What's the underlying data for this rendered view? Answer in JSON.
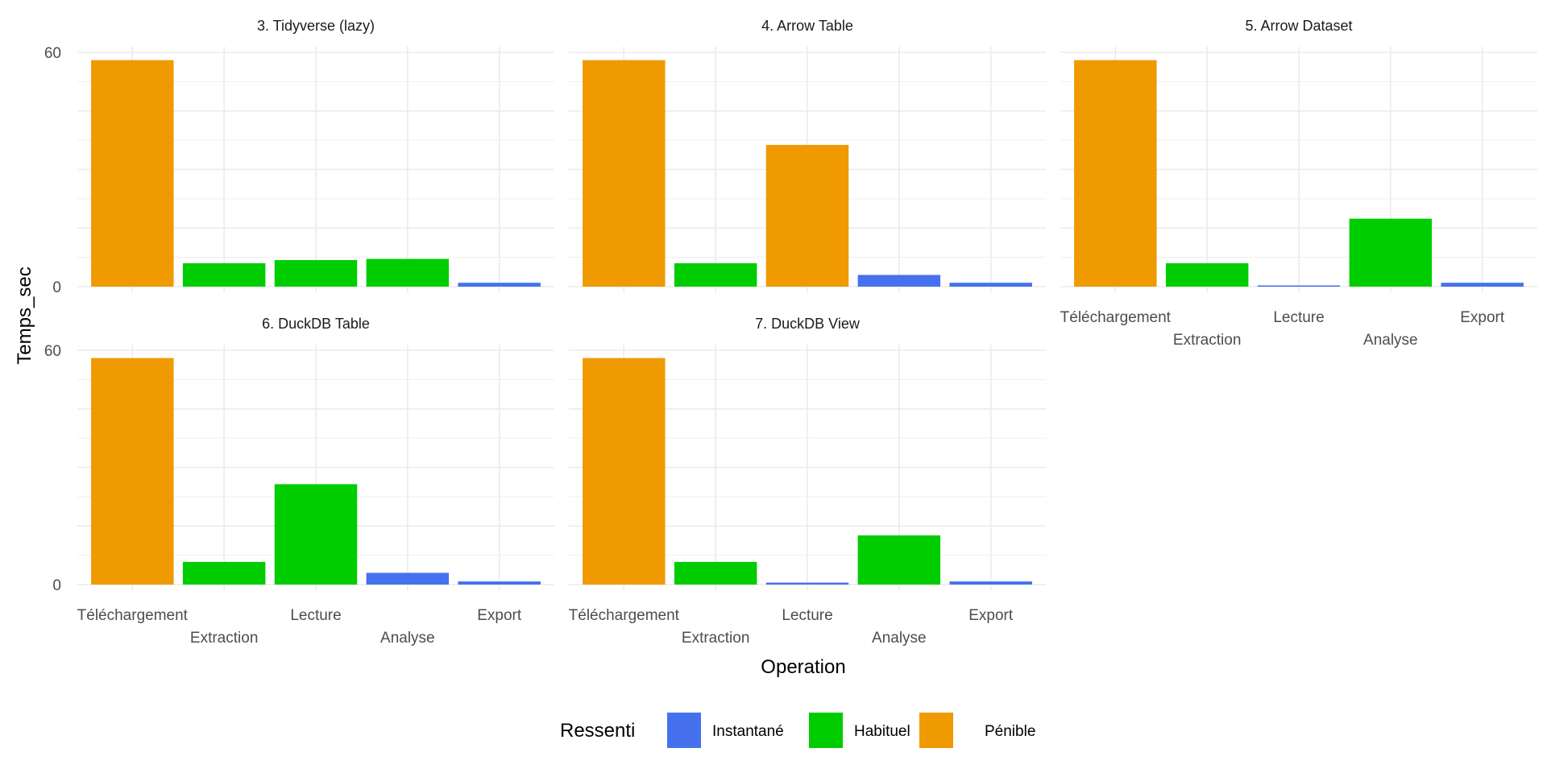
{
  "chart_data": {
    "type": "bar",
    "facet_layout": "3 columns, 2 rows",
    "xlabel": "Operation",
    "ylabel": "Temps_sec",
    "ylim": [
      0,
      60
    ],
    "yticks": [
      0,
      60
    ],
    "grid": true,
    "categories": [
      "Téléchargement",
      "Extraction",
      "Lecture",
      "Analyse",
      "Export"
    ],
    "legend": {
      "title": "Ressenti",
      "placement": "bottom",
      "entries": [
        {
          "label": "Instantané",
          "color": "#4671EE"
        },
        {
          "label": "Habituel",
          "color": "#00CD00"
        },
        {
          "label": "Pénible",
          "color": "#EE9A00"
        }
      ]
    },
    "panels": [
      {
        "title": "3. Tidyverse (lazy)",
        "values": [
          58,
          6,
          6.8,
          7.1,
          1
        ],
        "ressenti": [
          "Pénible",
          "Habituel",
          "Habituel",
          "Habituel",
          "Instantané"
        ]
      },
      {
        "title": "4. Arrow Table",
        "values": [
          58,
          6,
          36.3,
          3,
          1
        ],
        "ressenti": [
          "Pénible",
          "Habituel",
          "Pénible",
          "Instantané",
          "Instantané"
        ]
      },
      {
        "title": "5. Arrow Dataset",
        "values": [
          58,
          6,
          0.3,
          17.4,
          1
        ],
        "ressenti": [
          "Pénible",
          "Habituel",
          "Instantané",
          "Habituel",
          "Instantané"
        ]
      },
      {
        "title": "6. DuckDB Table",
        "values": [
          58,
          5.8,
          25.7,
          3,
          0.8
        ],
        "ressenti": [
          "Pénible",
          "Habituel",
          "Habituel",
          "Instantané",
          "Instantané"
        ]
      },
      {
        "title": "7. DuckDB View",
        "values": [
          58,
          5.8,
          0.5,
          12.6,
          0.8
        ],
        "ressenti": [
          "Pénible",
          "Habituel",
          "Instantané",
          "Habituel",
          "Instantané"
        ]
      }
    ]
  }
}
